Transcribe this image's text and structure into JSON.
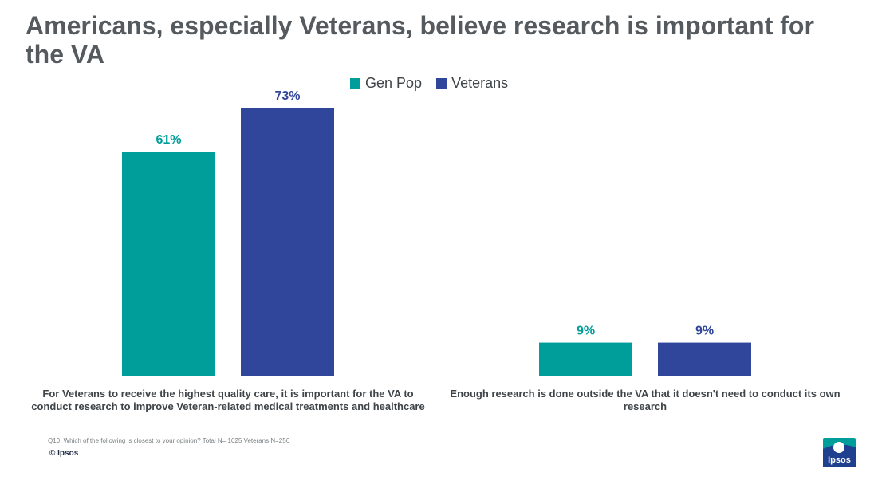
{
  "title": "Americans, especially Veterans, believe research is important for the VA",
  "colors": {
    "gen_pop": "#009e9a",
    "veterans": "#30469b",
    "title": "#555a5e"
  },
  "chart_data": {
    "type": "bar",
    "title": "Americans, especially Veterans, believe research is important for the VA",
    "categories": [
      "For Veterans to receive the highest quality care, it is important for the VA to conduct research to improve Veteran-related medical treatments and healthcare",
      "Enough research is done outside the VA that it doesn't need to conduct its own research"
    ],
    "series": [
      {
        "name": "Gen Pop",
        "values": [
          61,
          9
        ],
        "labels": [
          "61%",
          "9%"
        ],
        "color": "#009e9a"
      },
      {
        "name": "Veterans",
        "values": [
          73,
          9
        ],
        "labels": [
          "73%",
          "9%"
        ],
        "color": "#30469b"
      }
    ],
    "ylim": [
      0,
      73
    ],
    "grid": false,
    "legend": "top-center"
  },
  "footnote": "Q10. Which of the following is closest to your opinion? Total N= 1025 Veterans N=256",
  "copyright": "© Ipsos",
  "logo_text": "Ipsos"
}
